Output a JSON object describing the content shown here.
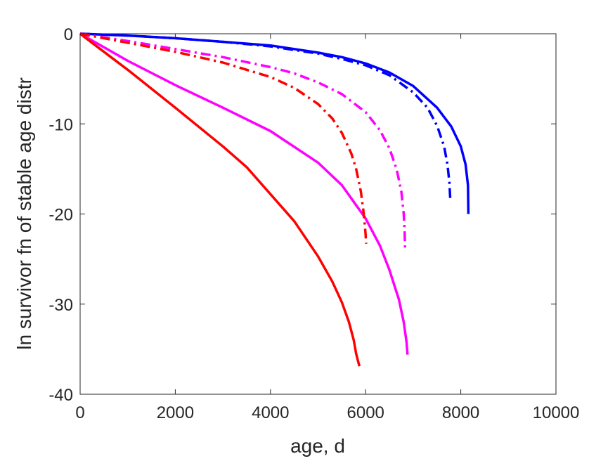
{
  "chart_data": {
    "type": "line",
    "title": "",
    "xlabel": "age, d",
    "ylabel": "ln survivor fn of stable age distr",
    "xlim": [
      0,
      10000
    ],
    "ylim": [
      -40,
      0
    ],
    "xticks": [
      0,
      2000,
      4000,
      6000,
      8000,
      10000
    ],
    "yticks": [
      0,
      -10,
      -20,
      -30,
      -40
    ],
    "xtick_labels": [
      "0",
      "2000",
      "4000",
      "6000",
      "8000",
      "10000"
    ],
    "ytick_labels": [
      "0",
      "-10",
      "-20",
      "-30",
      "-40"
    ],
    "grid": false,
    "legend": "none",
    "series": [
      {
        "color": "#0000ff",
        "style": "solid",
        "x": [
          0,
          1000,
          2000,
          3000,
          4000,
          5000,
          5500,
          6000,
          6500,
          7000,
          7500,
          7800,
          8000,
          8100,
          8150,
          8160
        ],
        "y": [
          0,
          -0.2,
          -0.5,
          -0.9,
          -1.3,
          -2.1,
          -2.6,
          -3.3,
          -4.3,
          -5.8,
          -8.2,
          -10.3,
          -12.5,
          -14.5,
          -16.8,
          -20.0
        ]
      },
      {
        "color": "#0000ff",
        "style": "dashdot",
        "x": [
          0,
          1000,
          2000,
          3000,
          4000,
          5000,
          5500,
          6000,
          6500,
          7000,
          7300,
          7500,
          7650,
          7720,
          7760,
          7780
        ],
        "y": [
          0,
          -0.2,
          -0.5,
          -0.9,
          -1.4,
          -2.2,
          -2.8,
          -3.5,
          -4.6,
          -6.5,
          -8.2,
          -10.2,
          -12.5,
          -14.5,
          -16.5,
          -18.5
        ]
      },
      {
        "color": "#ff00ff",
        "style": "solid",
        "x": [
          0,
          500,
          1000,
          2000,
          3000,
          4000,
          5000,
          5500,
          6000,
          6300,
          6500,
          6700,
          6800,
          6860,
          6880
        ],
        "y": [
          0,
          -1.5,
          -3.0,
          -5.7,
          -8.2,
          -10.8,
          -14.3,
          -16.8,
          -20.5,
          -23.5,
          -26.2,
          -29.5,
          -32.0,
          -34.2,
          -35.6
        ]
      },
      {
        "color": "#ff00ff",
        "style": "dashdot",
        "x": [
          0,
          1000,
          2000,
          3000,
          4000,
          4500,
          5000,
          5500,
          6000,
          6300,
          6500,
          6650,
          6750,
          6800,
          6820,
          6830
        ],
        "y": [
          0,
          -0.8,
          -1.7,
          -2.6,
          -3.7,
          -4.4,
          -5.4,
          -6.7,
          -8.7,
          -10.7,
          -12.7,
          -15.0,
          -17.5,
          -20.0,
          -22.0,
          -24.0
        ]
      },
      {
        "color": "#ff0000",
        "style": "solid",
        "x": [
          0,
          500,
          1000,
          2000,
          3000,
          3500,
          4000,
          4500,
          5000,
          5300,
          5500,
          5650,
          5750,
          5800,
          5850,
          5870
        ],
        "y": [
          0,
          -2.0,
          -4.0,
          -8.2,
          -12.5,
          -14.8,
          -17.8,
          -20.8,
          -24.7,
          -27.5,
          -29.8,
          -32.0,
          -34.0,
          -35.5,
          -36.5,
          -36.9
        ]
      },
      {
        "color": "#ff0000",
        "style": "dashdot",
        "x": [
          0,
          1000,
          2000,
          3000,
          4000,
          4500,
          5000,
          5300,
          5500,
          5700,
          5800,
          5900,
          5950,
          5980,
          6000,
          6010
        ],
        "y": [
          0,
          -1.0,
          -2.0,
          -3.2,
          -4.8,
          -6.0,
          -7.8,
          -9.4,
          -11.0,
          -13.3,
          -15.0,
          -17.5,
          -19.5,
          -21.0,
          -22.3,
          -23.3
        ]
      }
    ]
  }
}
